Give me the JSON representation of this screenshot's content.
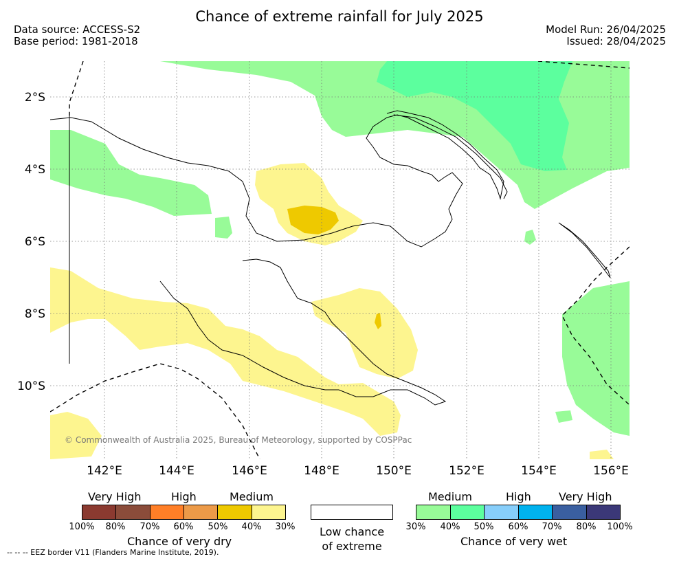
{
  "title": "Chance of extreme rainfall for July 2025",
  "meta": {
    "data_source": "Data source: ACCESS-S2",
    "base_period": "Base period: 1981-2018",
    "model_run": "Model Run: 26/04/2025",
    "issued": "Issued: 28/04/2025"
  },
  "map": {
    "lat_labels": [
      "2°S",
      "4°S",
      "6°S",
      "8°S",
      "10°S"
    ],
    "lon_labels": [
      "142°E",
      "144°E",
      "146°E",
      "148°E",
      "150°E",
      "152°E",
      "154°E",
      "156°E"
    ],
    "extent": {
      "lon_min": 140.5,
      "lon_max": 156.5,
      "lat_min": -12,
      "lat_max": -1
    },
    "copyright": "© Commonwealth of Australia 2025, Bureau of Meteorology, supported by COSPPac"
  },
  "legend": {
    "dry": {
      "title": "Chance of very dry",
      "levels": [
        "Very High",
        "High",
        "Medium"
      ],
      "ticks": [
        "100%",
        "80%",
        "70%",
        "60%",
        "50%",
        "40%",
        "30%"
      ],
      "colors": [
        "#8b3a30",
        "#8b4c3a",
        "#ff7f27",
        "#ec9a48",
        "#eec900",
        "#fdf58f"
      ]
    },
    "neutral": {
      "line1": "Low chance",
      "line2": "of extreme",
      "color": "#ffffff"
    },
    "wet": {
      "title": "Chance of very wet",
      "levels": [
        "Medium",
        "High",
        "Very High"
      ],
      "ticks": [
        "30%",
        "40%",
        "50%",
        "60%",
        "70%",
        "80%",
        "100%"
      ],
      "colors": [
        "#98fb98",
        "#5cff9e",
        "#87cefa",
        "#00b2ee",
        "#3a5fa0",
        "#3b3878"
      ]
    }
  },
  "footnote": "-- -- -- EEZ border V11 (Flanders Marine Institute, 2019)."
}
